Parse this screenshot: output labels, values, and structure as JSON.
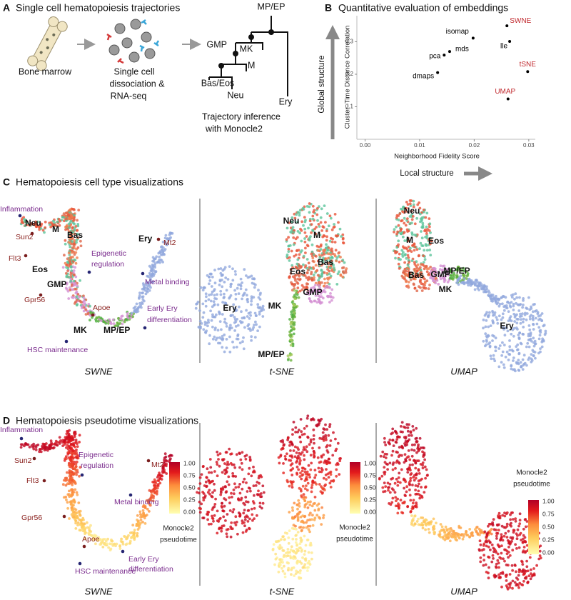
{
  "panel_a": {
    "letter": "A",
    "title": "Single cell hematopoiesis trajectories",
    "steps": [
      "Bone marrow",
      "Single cell",
      "dissociation &",
      "RNA-seq",
      "Trajectory inference",
      "with Monocle2"
    ],
    "tree_labels": [
      "MP/EP",
      "GMP",
      "MK",
      "M",
      "Bas/Eos",
      "Neu",
      "Ery"
    ]
  },
  "panel_b": {
    "letter": "B",
    "title": "Quantitative evaluation of embeddings",
    "global_arrow": "Global structure",
    "local_arrow": "Local structure"
  },
  "chart_data": {
    "type": "scatter",
    "x_label": "Neighborhood Fidelity Score",
    "y_label": "Cluster–Time Distance Correlation",
    "point_labels": [
      "SWNE",
      "lle",
      "tSNE",
      "UMAP",
      "isomap",
      "mds",
      "pca",
      "dmaps"
    ],
    "x": [
      0.026,
      0.0265,
      0.0298,
      0.0262,
      0.0198,
      0.0155,
      0.0145,
      0.0133
    ],
    "values": [
      0.349,
      0.301,
      0.208,
      0.124,
      0.311,
      0.27,
      0.259,
      0.205
    ],
    "color": "#000000",
    "label_colors": [
      "#c0282d",
      "#000000",
      "#c0282d",
      "#c0282d",
      "#000000",
      "#000000",
      "#000000",
      "#000000"
    ],
    "xlim": [
      -0.0015,
      0.0312
    ],
    "ylim": [
      0,
      0.38
    ],
    "xticks": [
      {
        "value": 0,
        "label": "0.00"
      },
      {
        "value": 0.01,
        "label": "0.01"
      },
      {
        "value": 0.02,
        "label": "0.02"
      },
      {
        "value": 0.03,
        "label": "0.03"
      }
    ],
    "yticks": [
      0.1,
      0.2,
      0.3
    ],
    "grid": false
  },
  "panel_c": {
    "letter": "C",
    "title": "Hematopoiesis cell type visualizations",
    "subtitles": [
      "SWNE",
      "t-SNE",
      "UMAP"
    ],
    "swne_labels": [
      "Inflammation",
      "Neu",
      "M",
      "Bas",
      "Sun2",
      "Flt3",
      "Mt2",
      "Ery",
      "Epigenetic",
      "regulation",
      "Eos",
      "Metal binding",
      "GMP",
      "Gpr56",
      "Apoe",
      "Early Ery",
      "differentiation",
      "MK",
      "MP/EP",
      "HSC maintenance"
    ],
    "tsne_labels": [
      "Neu",
      "M",
      "Bas",
      "Eos",
      "GMP",
      "Ery",
      "MK",
      "MP/EP"
    ],
    "umap_labels": [
      "Neu",
      "M",
      "Eos",
      "MP/EP",
      "Bas",
      "GMP",
      "MK",
      "Ery"
    ]
  },
  "panel_d": {
    "letter": "D",
    "title": "Hematopoiesis pseudotime visualizations",
    "subtitles": [
      "SWNE",
      "t-SNE",
      "UMAP"
    ],
    "swne_labels": [
      "Inflammation",
      "Sun2",
      "Flt3",
      "Epigenetic",
      "regulation",
      "Mt2",
      "Metal binding",
      "Gpr56",
      "Apoe",
      "Early Ery",
      "differentiation",
      "HSC maintenance"
    ],
    "colorbar_title": [
      "Monocle2",
      "pseudotime"
    ],
    "colorbar_ticks": [
      "1.00",
      "0.75",
      "0.50",
      "0.25",
      "0.00"
    ]
  }
}
